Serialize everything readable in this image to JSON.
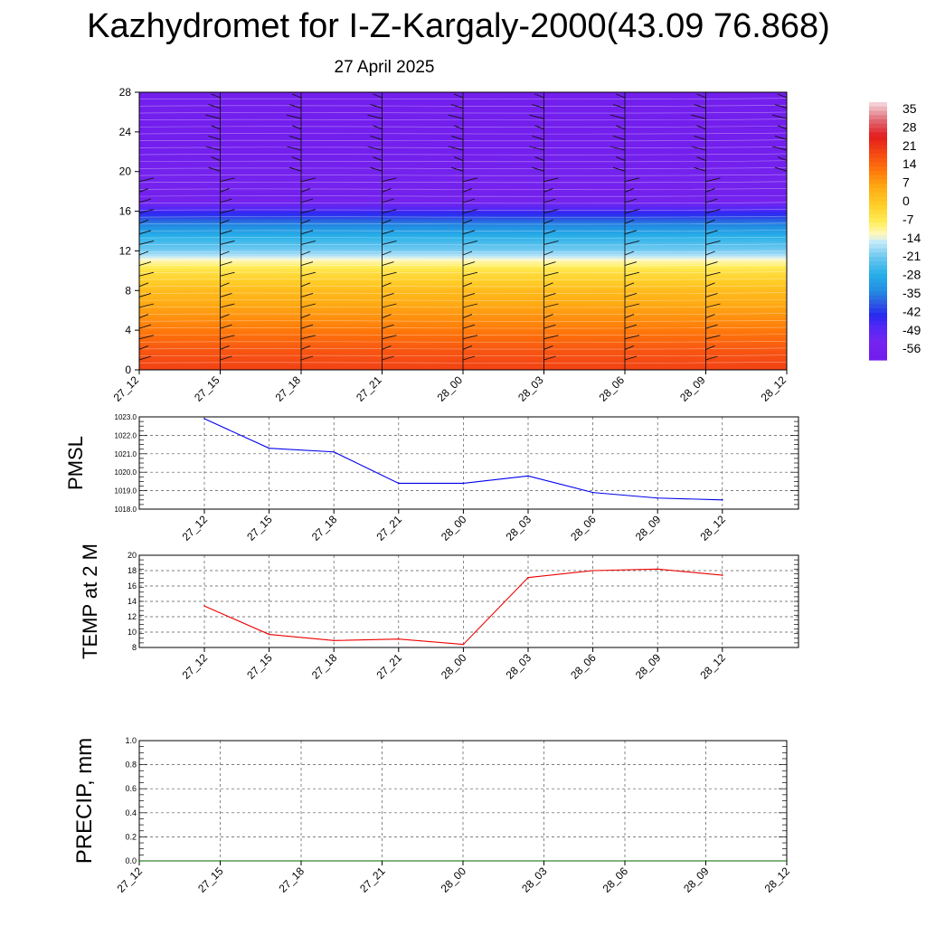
{
  "title": "Kazhydromet for I-Z-Kargaly-2000(43.09 76.868)",
  "subtitle": "27 April 2025",
  "colors": {
    "pmsl_line": "#0000ee",
    "temp_line": "#ee0000",
    "precip_line": "#006400"
  },
  "chart_data": [
    {
      "type": "heatmap",
      "title": "",
      "x_tick_labels": [
        "27_12",
        "27_15",
        "27_18",
        "27_21",
        "28_00",
        "28_03",
        "28_06",
        "28_09",
        "28_12"
      ],
      "y_tick_labels": [
        "0",
        "4",
        "8",
        "12",
        "16",
        "20",
        "24",
        "28"
      ],
      "ylim": [
        0,
        28
      ],
      "colorbar_labels": [
        "35",
        "28",
        "21",
        "14",
        "7",
        "0",
        "-7",
        "-14",
        "-21",
        "-28",
        "-35",
        "-42",
        "-49",
        "-56"
      ],
      "colorbar_range": [
        -63,
        42
      ],
      "value_profile_by_height": [
        {
          "height": 0,
          "value": 22
        },
        {
          "height": 2,
          "value": 19
        },
        {
          "height": 4,
          "value": 14
        },
        {
          "height": 6,
          "value": 9
        },
        {
          "height": 8,
          "value": 4
        },
        {
          "height": 10,
          "value": -4
        },
        {
          "height": 11,
          "value": -11
        },
        {
          "height": 12,
          "value": -20
        },
        {
          "height": 13.5,
          "value": -28
        },
        {
          "height": 15,
          "value": -38
        },
        {
          "height": 16.5,
          "value": -52
        },
        {
          "height": 17.5,
          "value": -60
        },
        {
          "height": 19,
          "value": -57
        },
        {
          "height": 22,
          "value": -60
        },
        {
          "height": 28,
          "value": -60
        }
      ],
      "overlay": "wind barbs",
      "grid": false
    },
    {
      "type": "line",
      "ylabel": "PMSL",
      "categories": [
        "27_12",
        "27_15",
        "27_18",
        "27_21",
        "28_00",
        "28_03",
        "28_06",
        "28_09",
        "28_12"
      ],
      "values": [
        1022.9,
        1021.3,
        1021.1,
        1019.4,
        1019.4,
        1019.8,
        1018.9,
        1018.6,
        1018.5
      ],
      "ylim": [
        1018.0,
        1023.0
      ],
      "y_tick_labels": [
        "1018.0",
        "1019.0",
        "1020.0",
        "1021.0",
        "1022.0",
        "1023.0"
      ],
      "grid": true
    },
    {
      "type": "line",
      "ylabel": "TEMP at 2 M",
      "categories": [
        "27_12",
        "27_15",
        "27_18",
        "27_21",
        "28_00",
        "28_03",
        "28_06",
        "28_09",
        "28_12"
      ],
      "values": [
        13.4,
        9.7,
        8.9,
        9.1,
        8.4,
        17.1,
        18.0,
        18.2,
        17.4
      ],
      "ylim": [
        8,
        20
      ],
      "y_tick_labels": [
        "8",
        "10",
        "12",
        "14",
        "16",
        "18",
        "20"
      ],
      "grid": true
    },
    {
      "type": "line",
      "ylabel": "PRECIP, mm",
      "categories": [
        "27_12",
        "27_15",
        "27_18",
        "27_21",
        "28_00",
        "28_03",
        "28_06",
        "28_09",
        "28_12"
      ],
      "values": [
        0,
        0,
        0,
        0,
        0,
        0,
        0,
        0,
        0
      ],
      "ylim": [
        0,
        1.0
      ],
      "y_tick_labels": [
        "0.0",
        "0.2",
        "0.4",
        "0.6",
        "0.8",
        "1.0"
      ],
      "grid": true
    }
  ]
}
